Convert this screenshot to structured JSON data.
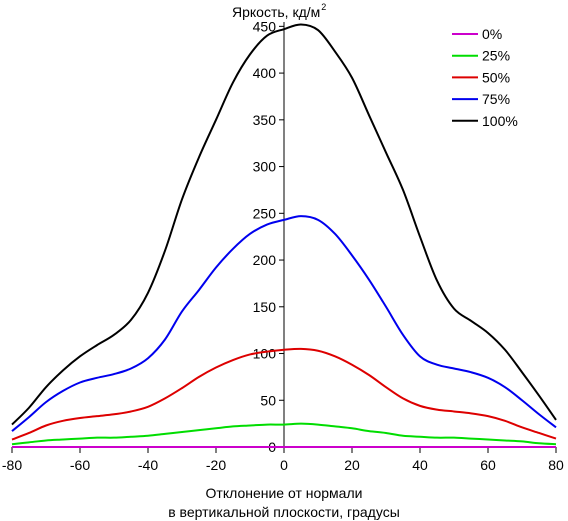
{
  "chart_data": {
    "type": "line",
    "title": "",
    "ylabel": "Яркость, кд/м",
    "ylabel_sup": "2",
    "xlabel_line1": "Отклонение от нормали",
    "xlabel_line2": "в вертикальной плоскости, градусы",
    "xlim": [
      -80,
      80
    ],
    "ylim": [
      0,
      460
    ],
    "xticks": [
      -80,
      -60,
      -40,
      -20,
      0,
      20,
      40,
      60,
      80
    ],
    "yticks": [
      0,
      50,
      100,
      150,
      200,
      250,
      300,
      350,
      400,
      450
    ],
    "x": [
      -80,
      -75,
      -70,
      -65,
      -60,
      -55,
      -50,
      -45,
      -40,
      -35,
      -30,
      -25,
      -20,
      -15,
      -10,
      -5,
      0,
      5,
      10,
      15,
      20,
      25,
      30,
      35,
      40,
      45,
      50,
      55,
      60,
      65,
      70,
      75,
      80
    ],
    "legend_position": "top-right",
    "grid": false,
    "series": [
      {
        "name": "0%",
        "color": "#cc00cc",
        "values": [
          0,
          0,
          0,
          0,
          0,
          0,
          0,
          0,
          0,
          0,
          0,
          0,
          0,
          0,
          0,
          0,
          0,
          0,
          0,
          0,
          0,
          0,
          0,
          0,
          0,
          0,
          0,
          0,
          0,
          0,
          0,
          0,
          0
        ]
      },
      {
        "name": "25%",
        "color": "#00dd00",
        "values": [
          3,
          5,
          7,
          8,
          9,
          10,
          10,
          11,
          12,
          14,
          16,
          18,
          20,
          22,
          23,
          24,
          24,
          25,
          24,
          22,
          20,
          17,
          15,
          12,
          11,
          10,
          10,
          9,
          8,
          7,
          6,
          4,
          3
        ]
      },
      {
        "name": "50%",
        "color": "#dd0000",
        "values": [
          8,
          15,
          23,
          28,
          31,
          33,
          35,
          38,
          43,
          52,
          63,
          75,
          85,
          93,
          99,
          102,
          104,
          105,
          103,
          97,
          88,
          77,
          64,
          52,
          44,
          40,
          38,
          36,
          33,
          28,
          21,
          15,
          9
        ]
      },
      {
        "name": "75%",
        "color": "#0000ee",
        "values": [
          17,
          32,
          48,
          60,
          69,
          74,
          78,
          84,
          95,
          115,
          145,
          168,
          192,
          212,
          228,
          238,
          243,
          247,
          243,
          228,
          205,
          179,
          150,
          120,
          97,
          88,
          84,
          80,
          74,
          64,
          50,
          35,
          21
        ]
      },
      {
        "name": "100%",
        "color": "#000000",
        "values": [
          24,
          42,
          64,
          82,
          97,
          109,
          120,
          136,
          165,
          210,
          265,
          310,
          350,
          390,
          420,
          440,
          447,
          452,
          446,
          423,
          395,
          355,
          315,
          275,
          225,
          178,
          148,
          135,
          122,
          104,
          80,
          55,
          29
        ]
      }
    ]
  }
}
